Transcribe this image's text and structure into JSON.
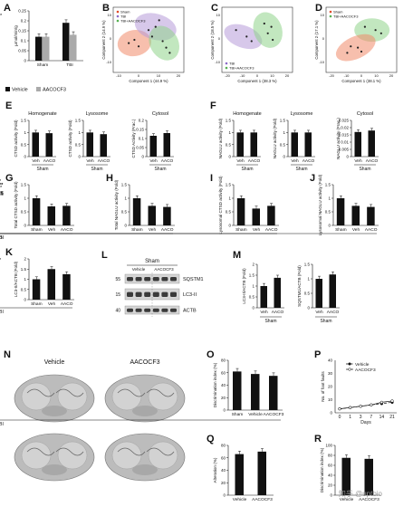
{
  "panels": {
    "A": {
      "letter": "A",
      "ylabel": "µmol/min/g",
      "groups": [
        "Sham",
        "TBI"
      ],
      "legend": [
        "Vehicle",
        "AACOCF3"
      ],
      "sig": "**",
      "chart_data": {
        "type": "bar",
        "categories": [
          "Sham",
          "TBI"
        ],
        "series": [
          {
            "name": "Vehicle",
            "values": [
              0.12,
              0.19
            ]
          },
          {
            "name": "AACOCF3",
            "values": [
              0.12,
              0.13
            ]
          }
        ],
        "ylim": [
          0,
          0.25
        ],
        "yticks": [
          "0",
          "0.05",
          "0.1",
          "0.15",
          "0.2",
          "0.25"
        ]
      }
    },
    "B": {
      "letter": "B",
      "xlabel": "Component 1 (44.9 %)",
      "ylabel": "Component 2 (14.9 %)",
      "legend": [
        "Sham",
        "TBI",
        "TBI+AACOCF3"
      ],
      "xticks": [
        "-10",
        "0",
        "10",
        "20"
      ],
      "yticks": [
        "-10",
        "0",
        "10"
      ]
    },
    "C": {
      "letter": "C",
      "xlabel": "Component 1 (38.3 %)",
      "ylabel": "Component 2 (18.5 %)",
      "legend": [
        "TBI",
        "TBI+AACOCF3"
      ],
      "xticks": [
        "-20",
        "-10",
        "0",
        "10",
        "20"
      ],
      "yticks": [
        "-10",
        "0",
        "10"
      ]
    },
    "D": {
      "letter": "D",
      "xlabel": "Component 1 (38.1 %)",
      "ylabel": "Component 2 (17.1 %)",
      "legend": [
        "Sham",
        "TBI+AACOCF3"
      ],
      "xticks": [
        "-20",
        "-10",
        "0",
        "10",
        "20"
      ],
      "yticks": [
        "-10",
        "0",
        "10"
      ]
    },
    "E": {
      "letter": "E",
      "subs": [
        {
          "title": "Homogenate",
          "ylabel": "CTSD activity (Fold)",
          "yticks": [
            "0",
            "0.5",
            "1",
            "1.5"
          ],
          "chart_data": {
            "type": "bar",
            "categories": [
              "Veh",
              "AACO"
            ],
            "values": [
              1.0,
              0.97
            ],
            "ylim": [
              0,
              1.5
            ]
          }
        },
        {
          "title": "Lysosome",
          "ylabel": "CTSD activity (Fold)",
          "yticks": [
            "0",
            "0.5",
            "1",
            "1.5"
          ],
          "chart_data": {
            "type": "bar",
            "categories": [
              "Veh",
              "AACO"
            ],
            "values": [
              1.0,
              0.93
            ],
            "ylim": [
              0,
              1.5
            ]
          }
        },
        {
          "title": "Cytosol",
          "ylabel": "CTSD Activity (Frac.)",
          "yticks": [
            "0",
            "0.05",
            "0.1",
            "0.15",
            "0.2"
          ],
          "chart_data": {
            "type": "bar",
            "categories": [
              "Veh",
              "AACO"
            ],
            "values": [
              0.115,
              0.13
            ],
            "ylim": [
              0,
              0.2
            ]
          }
        }
      ],
      "group": "Sham"
    },
    "F": {
      "letter": "F",
      "subs": [
        {
          "title": "Homogenate",
          "ylabel": "NAGLU activity (Fold)",
          "yticks": [
            "0",
            "0.5",
            "1",
            "1.5"
          ],
          "chart_data": {
            "type": "bar",
            "categories": [
              "Veh",
              "AACO"
            ],
            "values": [
              1.0,
              1.0
            ],
            "ylim": [
              0,
              1.5
            ]
          }
        },
        {
          "title": "Lysosome",
          "ylabel": "NAGLU activity (Fold)",
          "yticks": [
            "0",
            "0.5",
            "1",
            "1.5"
          ],
          "chart_data": {
            "type": "bar",
            "categories": [
              "Veh",
              "AACO"
            ],
            "values": [
              1.0,
              1.0
            ],
            "ylim": [
              0,
              1.5
            ]
          }
        },
        {
          "title": "Cytosol",
          "ylabel": "NAGLU activity (Frac.)",
          "yticks": [
            "0",
            "0.005",
            "0.01",
            "0.015",
            "0.02",
            "0.025"
          ],
          "chart_data": {
            "type": "bar",
            "categories": [
              "Veh",
              "AACO"
            ],
            "values": [
              0.017,
              0.018
            ],
            "ylim": [
              0,
              0.025
            ]
          }
        }
      ],
      "group": "Sham"
    },
    "G": {
      "letter": "G",
      "ylabel": "Total CTSD activity (Fold)",
      "tbi": "TBI",
      "sig1": "***",
      "sig2": "NS",
      "yticks": [
        "0",
        "0.5",
        "1",
        "1.5"
      ],
      "chart_data": {
        "type": "bar",
        "categories": [
          "Sham",
          "Veh",
          "AACO"
        ],
        "values": [
          1.0,
          0.7,
          0.72
        ],
        "ylim": [
          0,
          1.5
        ]
      }
    },
    "H": {
      "letter": "H",
      "ylabel": "Total NAGLU activity (Fold)",
      "tbi": "TBI",
      "sig1": "***",
      "sig2": "NS",
      "yticks": [
        "0",
        "0.5",
        "1",
        "1.5"
      ],
      "chart_data": {
        "type": "bar",
        "categories": [
          "Sham",
          "Veh",
          "AACO"
        ],
        "values": [
          1.0,
          0.72,
          0.68
        ],
        "ylim": [
          0,
          1.5
        ]
      }
    },
    "I": {
      "letter": "I",
      "ylabel": "Lysosomal CTSD activity (Fold)",
      "tbi": "TBI",
      "sig1": "*",
      "sig2": "**",
      "sig3": "NS",
      "yticks": [
        "0",
        "0.5",
        "1",
        "1.5"
      ],
      "chart_data": {
        "type": "bar",
        "categories": [
          "Sham",
          "Veh",
          "AACO"
        ],
        "values": [
          1.0,
          0.62,
          0.72
        ],
        "ylim": [
          0,
          1.5
        ]
      }
    },
    "J": {
      "letter": "J",
      "ylabel": "Lysosomal NAGLU activity (Fold)",
      "tbi": "TBI",
      "sig1": "***",
      "sig2": "NS",
      "yticks": [
        "0",
        "0.5",
        "1",
        "1.5"
      ],
      "chart_data": {
        "type": "bar",
        "categories": [
          "Sham",
          "Veh",
          "AACO"
        ],
        "values": [
          1.0,
          0.72,
          0.68
        ],
        "ylim": [
          0,
          1.5
        ]
      }
    },
    "K": {
      "letter": "K",
      "ylabel": "LC3-II/ACTB (Fold)",
      "tbi": "TBI",
      "sig1": "*",
      "yticks": [
        "0",
        "0.5",
        "1",
        "1.5",
        "2"
      ],
      "chart_data": {
        "type": "bar",
        "categories": [
          "Sham",
          "Veh",
          "AACO"
        ],
        "values": [
          1.0,
          1.5,
          1.25
        ],
        "ylim": [
          0,
          2
        ]
      }
    },
    "L": {
      "letter": "L",
      "title": "Sham",
      "lanes": [
        "Vehicle",
        "AACOCF3"
      ],
      "bands": [
        "SQSTM1",
        "LC3-II",
        "ACTB"
      ],
      "mw": [
        "55",
        "15",
        "40"
      ]
    },
    "M": {
      "letter": "M",
      "group": "Sham",
      "subs": [
        {
          "ylabel": "LC3-II/ACTB (Fold)",
          "yticks": [
            "0",
            "0.5",
            "1",
            "1.5",
            "2"
          ],
          "chart_data": {
            "type": "bar",
            "categories": [
              "Veh",
              "AACO"
            ],
            "values": [
              1.0,
              1.38
            ],
            "ylim": [
              0,
              2
            ]
          }
        },
        {
          "ylabel": "SQSTM1/ACTB (Fold)",
          "yticks": [
            "0",
            "0.5",
            "1",
            "1.5"
          ],
          "chart_data": {
            "type": "bar",
            "categories": [
              "Veh",
              "AACO"
            ],
            "values": [
              1.0,
              1.15
            ],
            "ylim": [
              0,
              1.5
            ]
          }
        }
      ]
    },
    "N": {
      "letter": "N",
      "cols": [
        "Vehicle",
        "AACOCF3"
      ]
    },
    "O": {
      "letter": "O",
      "ylabel": "Discrimination index (%)",
      "tbi": "TBI",
      "yticks": [
        "0",
        "20",
        "40",
        "60",
        "80"
      ],
      "chart_data": {
        "type": "bar",
        "categories": [
          "Sham",
          "Vehicle",
          "AACOCF3"
        ],
        "values": [
          62,
          58,
          55
        ],
        "ylim": [
          0,
          80
        ]
      }
    },
    "P": {
      "letter": "P",
      "ylabel": "No. of foot faults",
      "xlabel": "Days",
      "legend": [
        "Vehicle",
        "AACOCF3"
      ],
      "yticks": [
        "0",
        "10",
        "20",
        "30",
        "40"
      ],
      "chart_data": {
        "type": "line",
        "x": [
          "0",
          "1",
          "3",
          "7",
          "14",
          "21"
        ],
        "series": [
          {
            "name": "Vehicle",
            "values": [
              3,
              4,
              5,
              6,
              7,
              8
            ]
          },
          {
            "name": "AACOCF3",
            "values": [
              3,
              4,
              5,
              6,
              8,
              9
            ]
          }
        ],
        "ylim": [
          0,
          40
        ]
      }
    },
    "Q": {
      "letter": "Q",
      "ylabel": "Alteration (%)",
      "yticks": [
        "0",
        "20",
        "40",
        "60",
        "80"
      ],
      "chart_data": {
        "type": "bar",
        "categories": [
          "Vehicle",
          "AACOCF3"
        ],
        "values": [
          66,
          70
        ],
        "ylim": [
          0,
          80
        ]
      }
    },
    "R": {
      "letter": "R",
      "ylabel": "Discrimination index (%)",
      "yticks": [
        "0",
        "20",
        "40",
        "60",
        "80",
        "100"
      ],
      "watermark": "知乎 @uptbio",
      "chart_data": {
        "type": "bar",
        "categories": [
          "Vehicle",
          "AACOCF3"
        ],
        "values": [
          75,
          73
        ],
        "ylim": [
          0,
          100
        ]
      }
    }
  }
}
